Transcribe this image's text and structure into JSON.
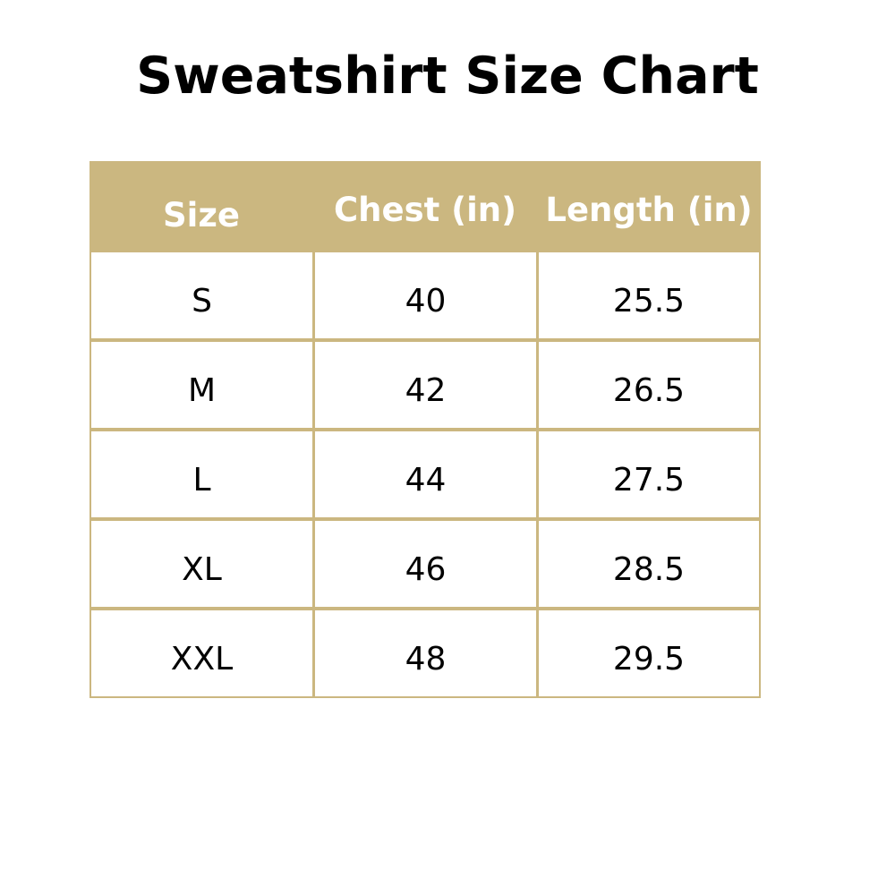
{
  "title": "Sweatshirt Size Chart",
  "colors": {
    "header_bg": "#cbb780",
    "header_text": "#ffffff",
    "border": "#cbb780"
  },
  "table": {
    "headers": [
      "Size",
      "Chest (in)",
      "Length (in)"
    ],
    "rows": [
      [
        "S",
        "40",
        "25.5"
      ],
      [
        "M",
        "42",
        "26.5"
      ],
      [
        "L",
        "44",
        "27.5"
      ],
      [
        "XL",
        "46",
        "28.5"
      ],
      [
        "XXL",
        "48",
        "29.5"
      ]
    ]
  }
}
